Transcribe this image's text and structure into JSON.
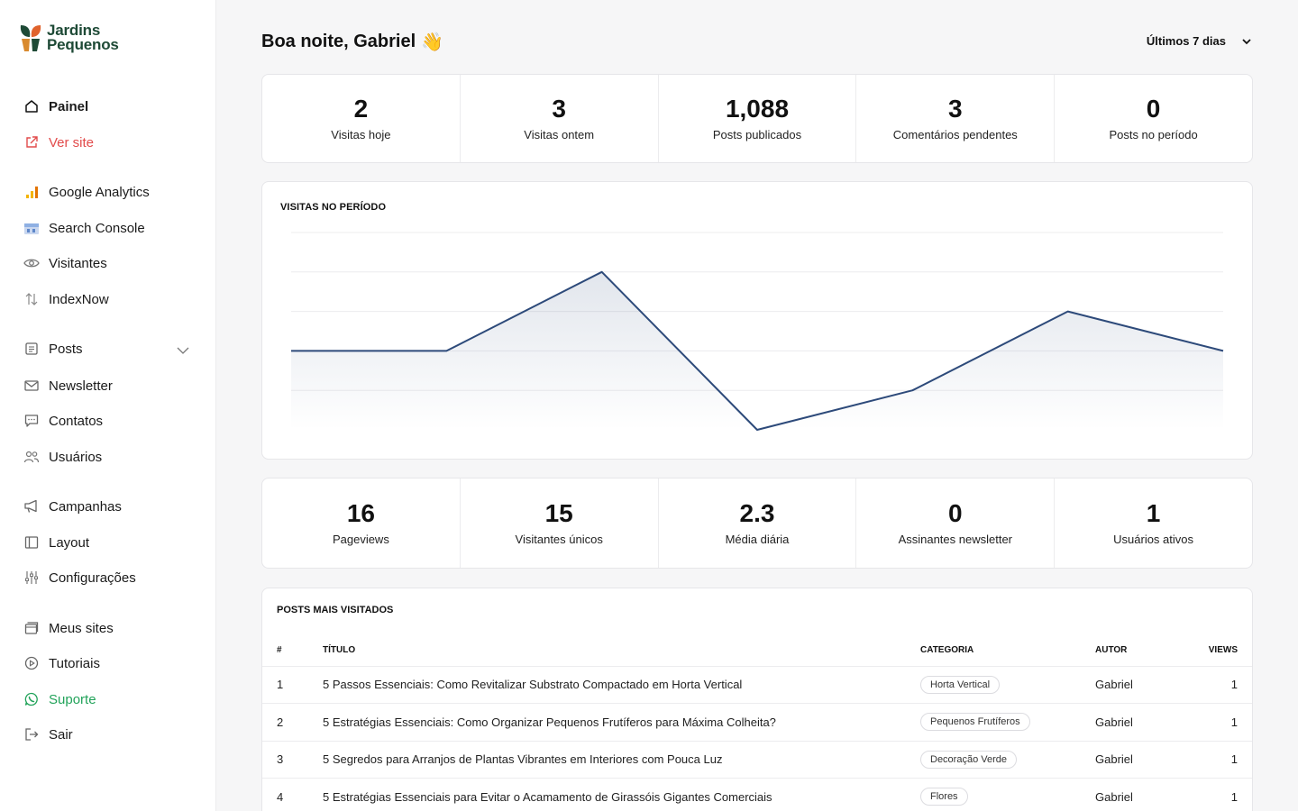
{
  "brand": {
    "line1": "Jardins",
    "line2": "Pequenos"
  },
  "nav": [
    {
      "label": "Painel",
      "icon": "home-icon"
    },
    {
      "label": "Ver site",
      "icon": "external-link-icon"
    },
    {
      "label": "Google Analytics",
      "icon": "analytics-icon"
    },
    {
      "label": "Search Console",
      "icon": "search-console-icon"
    },
    {
      "label": "Visitantes",
      "icon": "eye-icon"
    },
    {
      "label": "IndexNow",
      "icon": "arrows-updown-icon"
    },
    {
      "label": "Posts",
      "icon": "document-icon"
    },
    {
      "label": "Newsletter",
      "icon": "mail-icon"
    },
    {
      "label": "Contatos",
      "icon": "chat-icon"
    },
    {
      "label": "Usuários",
      "icon": "users-icon"
    },
    {
      "label": "Campanhas",
      "icon": "megaphone-icon"
    },
    {
      "label": "Layout",
      "icon": "layout-icon"
    },
    {
      "label": "Configurações",
      "icon": "sliders-icon"
    },
    {
      "label": "Meus sites",
      "icon": "sites-icon"
    },
    {
      "label": "Tutoriais",
      "icon": "play-icon"
    },
    {
      "label": "Suporte",
      "icon": "whatsapp-icon"
    },
    {
      "label": "Sair",
      "icon": "logout-icon"
    }
  ],
  "header": {
    "greeting": "Boa noite, Gabriel",
    "wave": "👋",
    "period": "Últimos 7 dias"
  },
  "stats_top": [
    {
      "value": "2",
      "label": "Visitas hoje"
    },
    {
      "value": "3",
      "label": "Visitas ontem"
    },
    {
      "value": "1,088",
      "label": "Posts publicados"
    },
    {
      "value": "3",
      "label": "Comentários pendentes"
    },
    {
      "value": "0",
      "label": "Posts no período"
    }
  ],
  "chart": {
    "title": "VISITAS NO PERÍODO"
  },
  "chart_data": {
    "type": "area",
    "title": "VISITAS NO PERÍODO",
    "values": [
      2,
      2,
      4,
      0,
      1,
      3,
      2
    ],
    "ylim": [
      0,
      5
    ],
    "grid": true,
    "color": "#2d4a7a"
  },
  "stats_bottom": [
    {
      "value": "16",
      "label": "Pageviews"
    },
    {
      "value": "15",
      "label": "Visitantes únicos"
    },
    {
      "value": "2.3",
      "label": "Média diária"
    },
    {
      "value": "0",
      "label": "Assinantes newsletter"
    },
    {
      "value": "1",
      "label": "Usuários ativos"
    }
  ],
  "top_posts": {
    "title": "POSTS MAIS VISITADOS",
    "columns": [
      "#",
      "TÍTULO",
      "CATEGORIA",
      "AUTOR",
      "VIEWS"
    ],
    "rows": [
      {
        "n": "1",
        "title": "5 Passos Essenciais: Como Revitalizar Substrato Compactado em Horta Vertical",
        "category": "Horta Vertical",
        "author": "Gabriel",
        "views": "1"
      },
      {
        "n": "2",
        "title": "5 Estratégias Essenciais: Como Organizar Pequenos Frutíferos para Máxima Colheita?",
        "category": "Pequenos Frutíferos",
        "author": "Gabriel",
        "views": "1"
      },
      {
        "n": "3",
        "title": "5 Segredos para Arranjos de Plantas Vibrantes em Interiores com Pouca Luz",
        "category": "Decoração Verde",
        "author": "Gabriel",
        "views": "1"
      },
      {
        "n": "4",
        "title": "5 Estratégias Essenciais para Evitar o Acamamento de Girassóis Gigantes Comerciais",
        "category": "Flores",
        "author": "Gabriel",
        "views": "1"
      }
    ]
  }
}
